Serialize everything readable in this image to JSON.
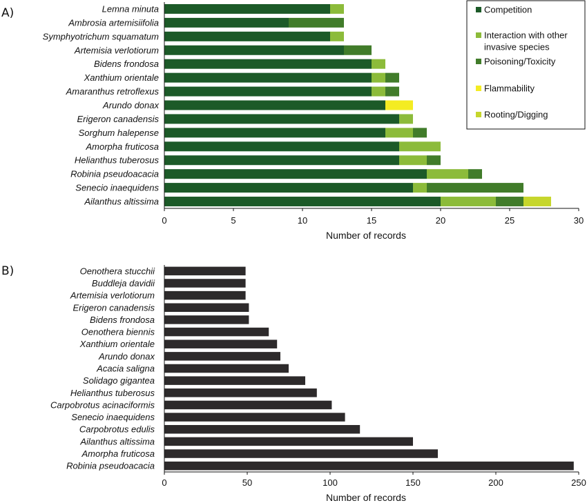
{
  "panels": {
    "a_label": "A)",
    "b_label": "B)"
  },
  "chart_data": [
    {
      "type": "bar",
      "orientation": "horizontal",
      "stacked": true,
      "panel": "A)",
      "categories": [
        "Lemna minuta",
        "Ambrosia artemisiifolia",
        "Symphyotrichum squamatum",
        "Artemisia verlotiorum",
        "Bidens frondosa",
        "Xanthium orientale",
        "Amaranthus retroflexus",
        "Arundo donax",
        "Erigeron canadensis",
        "Sorghum halepense",
        "Amorpha fruticosa",
        "Helianthus tuberosus",
        "Robinia pseudoacacia",
        "Senecio inaequidens",
        "Ailanthus altissima"
      ],
      "series": [
        {
          "name": "Competition",
          "color": "#1c5a28",
          "values": [
            12,
            9,
            12,
            13,
            15,
            15,
            15,
            16,
            17,
            16,
            17,
            17,
            19,
            18,
            20
          ]
        },
        {
          "name": "Interaction with other invasive species",
          "color": "#8cbb3a",
          "values": [
            1,
            0,
            1,
            0,
            1,
            1,
            1,
            0,
            1,
            2,
            3,
            2,
            3,
            1,
            4
          ]
        },
        {
          "name": "Poisoning/Toxicity",
          "color": "#417c2a",
          "values": [
            0,
            4,
            0,
            2,
            0,
            1,
            1,
            0,
            0,
            1,
            0,
            1,
            1,
            7,
            2
          ]
        },
        {
          "name": "Flammability",
          "color": "#f4ec22",
          "values": [
            0,
            0,
            0,
            0,
            0,
            0,
            0,
            2,
            0,
            0,
            0,
            0,
            0,
            0,
            0
          ]
        },
        {
          "name": "Rooting/Digging",
          "color": "#c6d62c",
          "values": [
            0,
            0,
            0,
            0,
            0,
            0,
            0,
            0,
            0,
            0,
            0,
            0,
            0,
            0,
            2
          ]
        }
      ],
      "xlabel": "Number of records",
      "xlim": [
        0,
        30
      ],
      "xticks": [
        0,
        5,
        10,
        15,
        20,
        25,
        30
      ],
      "legend": "top-right",
      "grid": false
    },
    {
      "type": "bar",
      "orientation": "horizontal",
      "stacked": false,
      "panel": "B)",
      "categories": [
        "Oenothera stucchii",
        "Buddleja davidii",
        "Artemisia verlotiorum",
        "Erigeron canadensis",
        "Bidens frondosa",
        "Oenothera biennis",
        "Xanthium orientale",
        "Arundo donax",
        "Acacia saligna",
        "Solidago gigantea",
        "Helianthus tuberosus",
        "Carpobrotus acinaciformis",
        "Senecio inaequidens",
        "Carpobrotus edulis",
        "Ailanthus altissima",
        "Amorpha fruticosa",
        "Robinia pseudoacacia"
      ],
      "values": [
        49,
        49,
        49,
        51,
        51,
        63,
        68,
        70,
        75,
        85,
        92,
        101,
        109,
        118,
        150,
        165,
        247
      ],
      "color": "#2d2a2b",
      "xlabel": "Number of records",
      "xlim": [
        0,
        250
      ],
      "xticks": [
        0,
        50,
        100,
        150,
        200,
        250
      ],
      "grid": false
    }
  ]
}
